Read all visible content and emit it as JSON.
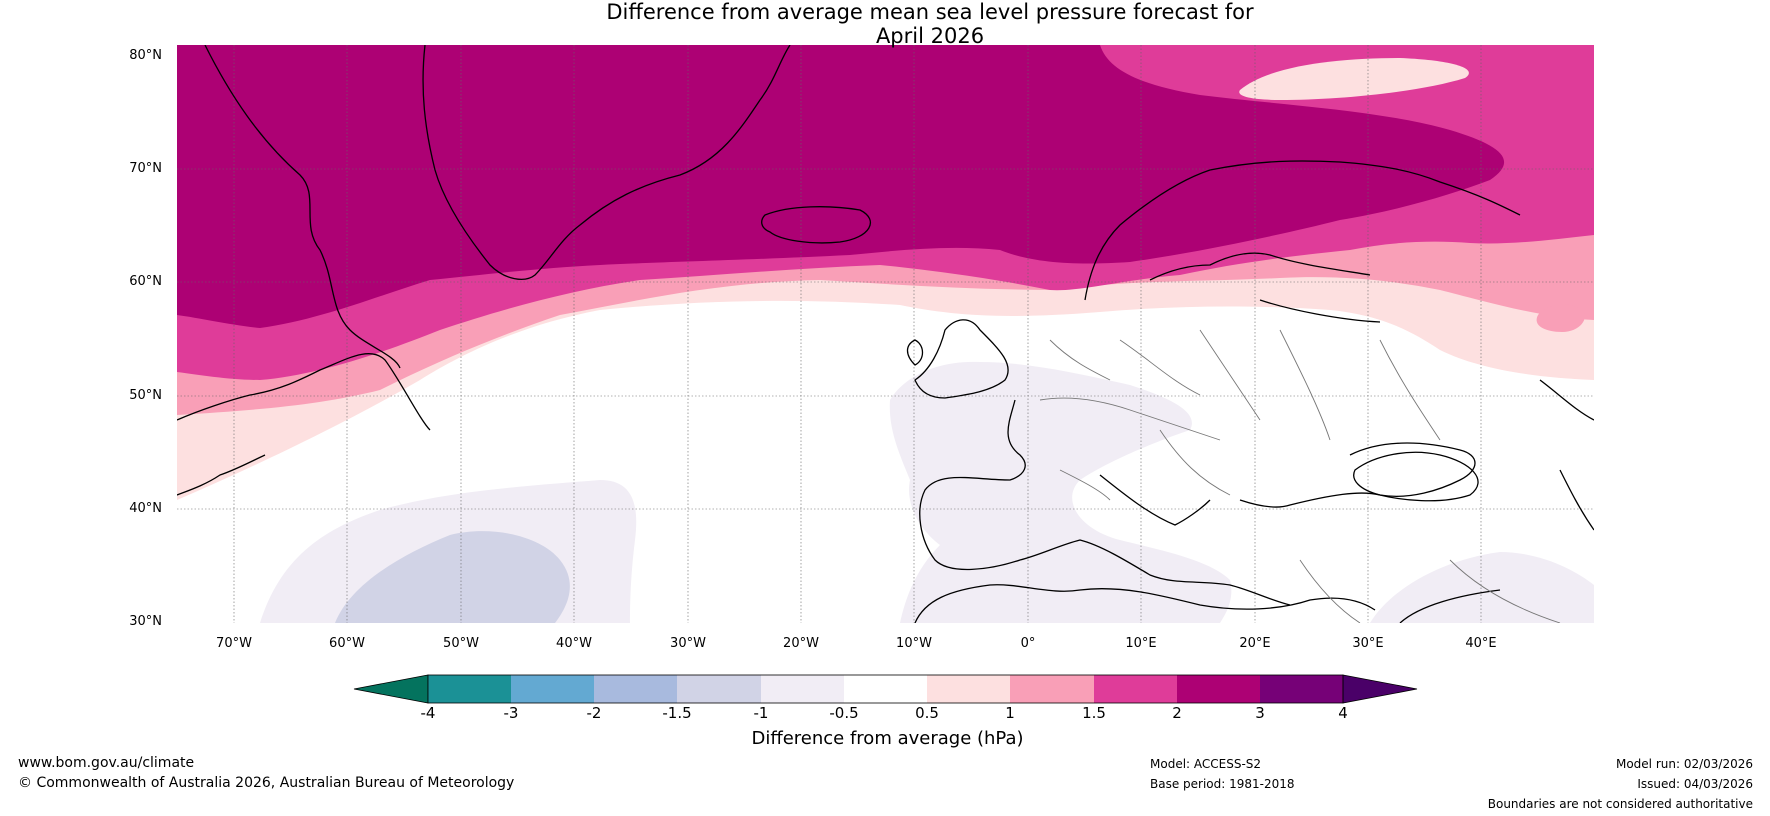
{
  "title": {
    "line1": "Difference from average mean sea level pressure forecast for",
    "line2": "April 2026"
  },
  "map": {
    "region": "North Atlantic and Europe",
    "lat_labels": [
      "80°N",
      "70°N",
      "60°N",
      "50°N",
      "40°N",
      "30°N"
    ],
    "lon_labels": [
      "70°W",
      "60°W",
      "50°W",
      "40°W",
      "30°W",
      "20°W",
      "10°W",
      "0°",
      "10°E",
      "20°E",
      "30°E",
      "40°E"
    ],
    "extent": {
      "lon_min": -75,
      "lon_max": 50,
      "lat_min": 30,
      "lat_max": 81
    },
    "grid": true
  },
  "colorbar": {
    "label": "Difference from average (hPa)",
    "ticks": [
      "-4",
      "-3",
      "-2",
      "-1.5",
      "-1",
      "-0.5",
      "0.5",
      "1",
      "1.5",
      "2",
      "3",
      "4"
    ],
    "under_color": "#04735e",
    "over_color": "#4a0068",
    "colors": [
      "#1b9196",
      "#63a9d2",
      "#a8bade",
      "#d1d3e6",
      "#f1edf5",
      "#ffffff",
      "#fde0e0",
      "#f99fb7",
      "#df3c99",
      "#ad0174",
      "#760177"
    ]
  },
  "footer": {
    "website": "www.bom.gov.au/climate",
    "copyright": "© Commonwealth of Australia 2026, Australian Bureau of Meteorology",
    "model": "Model: ACCESS-S2",
    "base_period": "Base period: 1981-2018",
    "model_run": "Model run: 02/03/2026",
    "issued": "Issued: 04/03/2026",
    "disclaimer": "Boundaries are not considered authoritative"
  }
}
